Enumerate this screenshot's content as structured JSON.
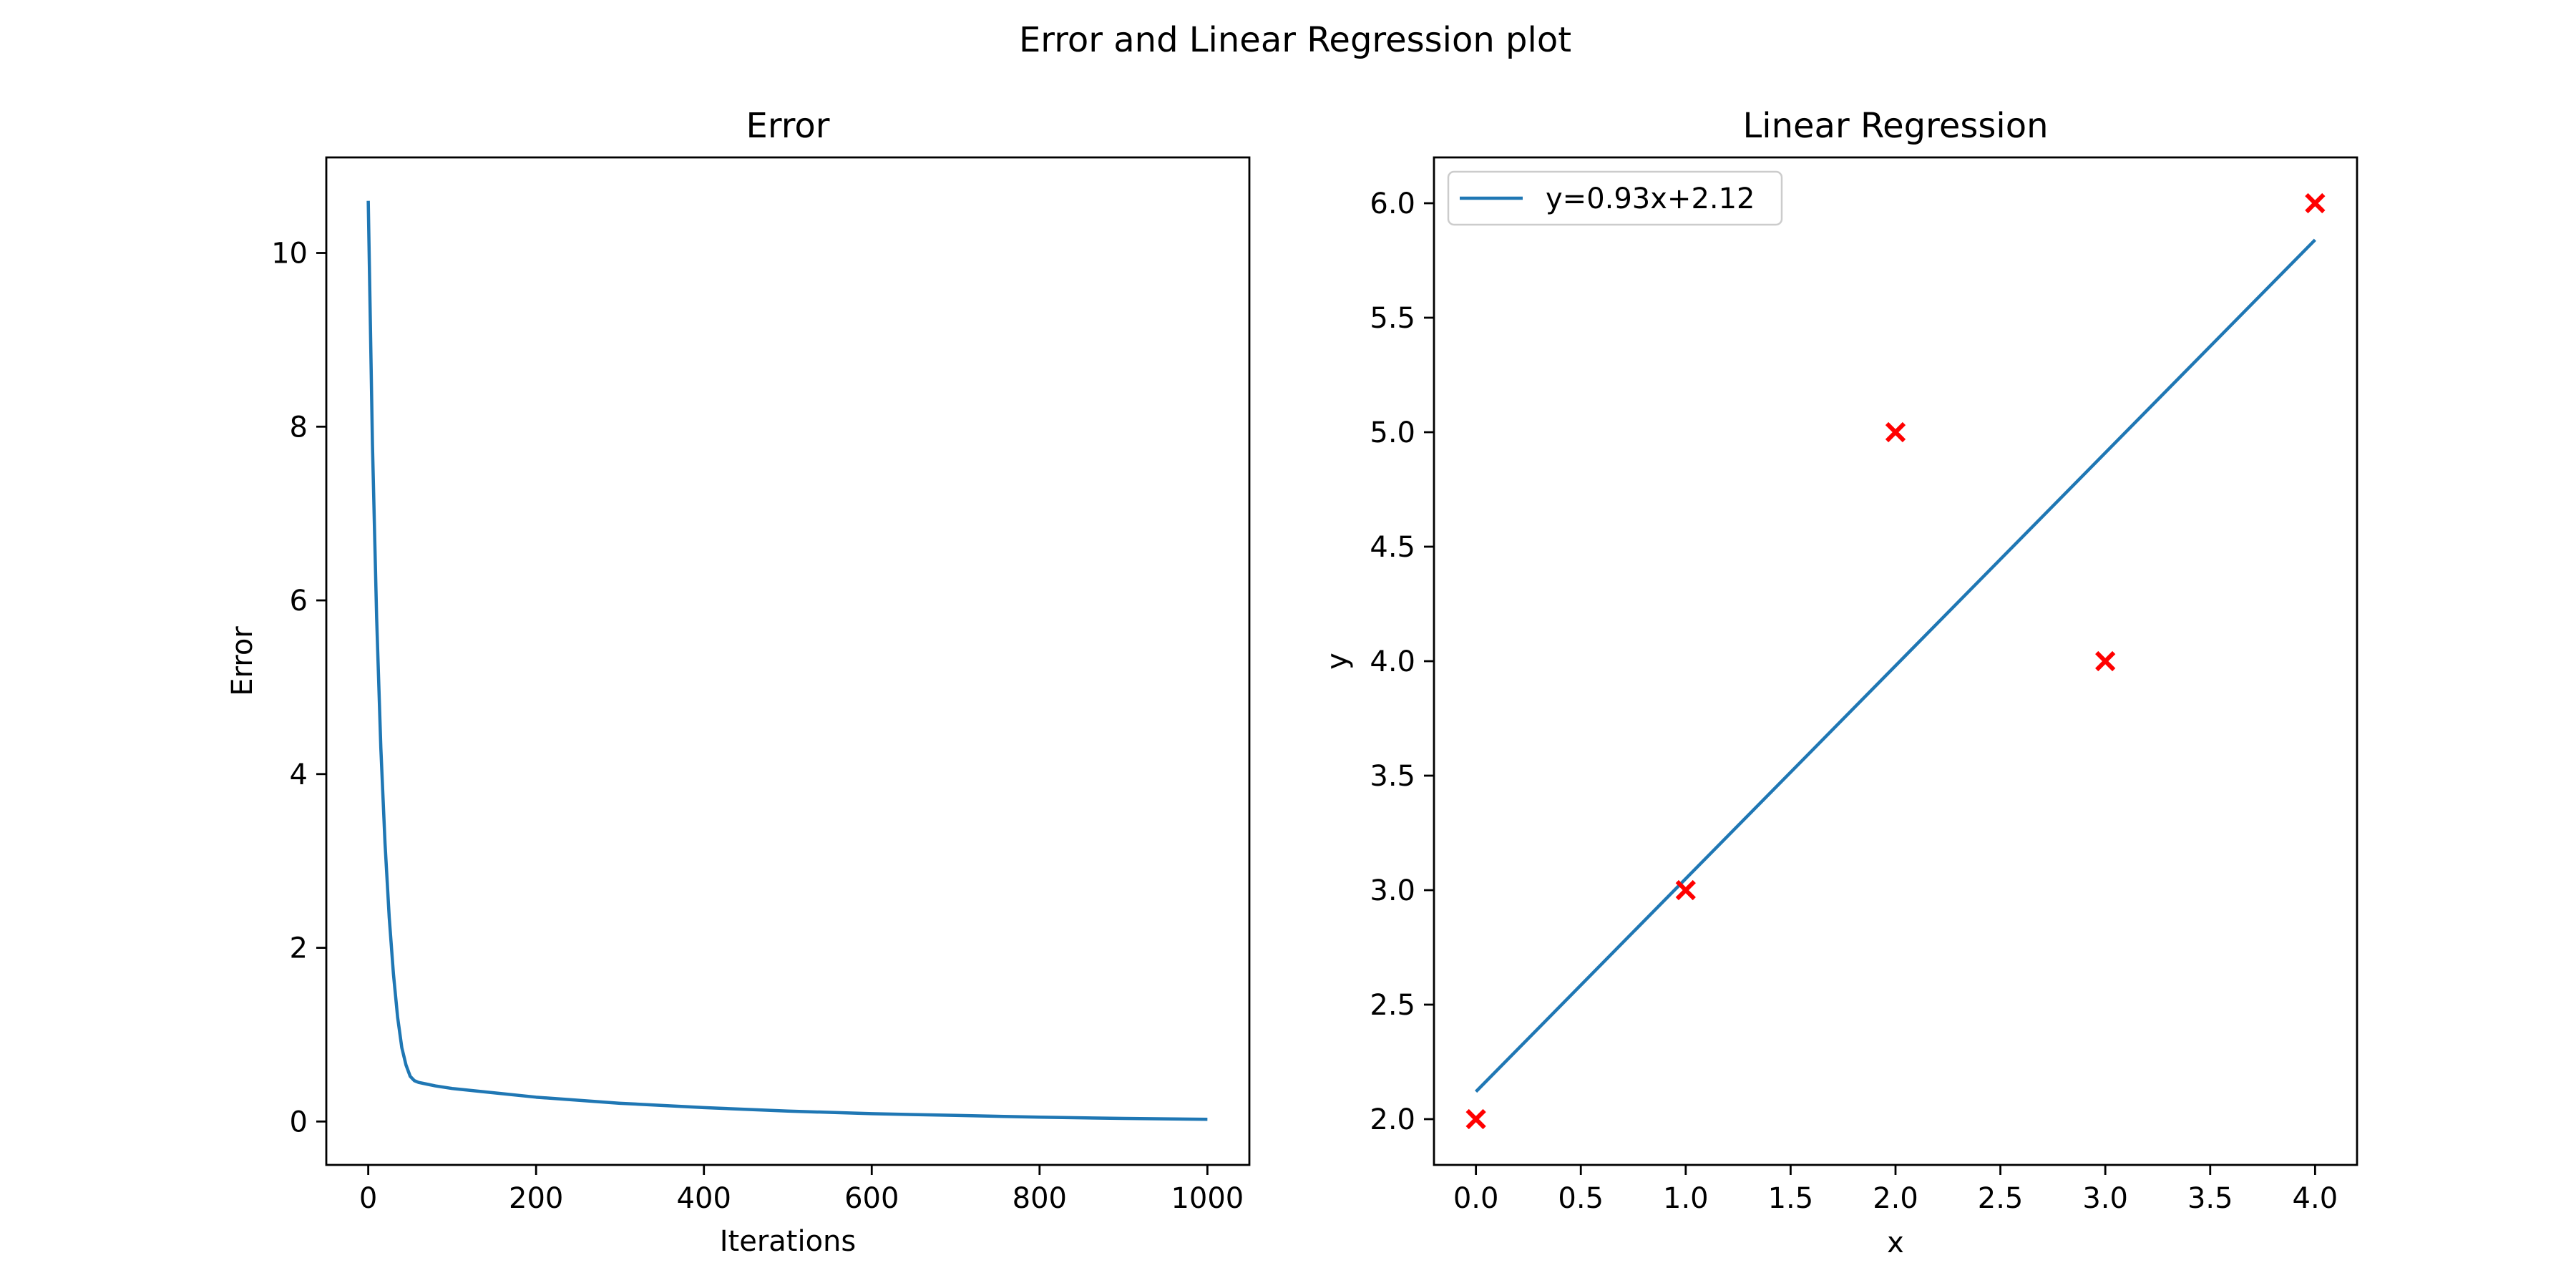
{
  "figure": {
    "suptitle": "Error and Linear Regression plot"
  },
  "chart_data": [
    {
      "type": "line",
      "title": "Error",
      "xlabel": "Iterations",
      "ylabel": "Error",
      "xlim": [
        -50,
        1050
      ],
      "ylim": [
        -0.5,
        11.1
      ],
      "xticks": [
        0,
        200,
        400,
        600,
        800,
        1000
      ],
      "xtick_labels": [
        "0",
        "200",
        "400",
        "600",
        "800",
        "1000"
      ],
      "yticks": [
        0,
        2,
        4,
        6,
        8,
        10
      ],
      "ytick_labels": [
        "0",
        "2",
        "4",
        "6",
        "8",
        "10"
      ],
      "grid": false,
      "line_color": "#1f77b4",
      "series": [
        {
          "x": [
            0,
            5,
            10,
            15,
            20,
            25,
            30,
            35,
            40,
            45,
            50,
            55,
            60,
            70,
            80,
            100,
            150,
            200,
            300,
            400,
            500,
            600,
            700,
            800,
            900,
            1000
          ],
          "y": [
            10.6,
            7.8,
            5.8,
            4.3,
            3.2,
            2.35,
            1.7,
            1.2,
            0.85,
            0.65,
            0.52,
            0.47,
            0.45,
            0.43,
            0.41,
            0.38,
            0.33,
            0.28,
            0.21,
            0.16,
            0.12,
            0.09,
            0.07,
            0.05,
            0.035,
            0.025
          ]
        }
      ]
    },
    {
      "type": "scatter",
      "title": "Linear Regression",
      "xlabel": "x",
      "ylabel": "y",
      "xlim": [
        -0.2,
        4.2
      ],
      "ylim": [
        1.8,
        6.2
      ],
      "xticks": [
        0.0,
        0.5,
        1.0,
        1.5,
        2.0,
        2.5,
        3.0,
        3.5,
        4.0
      ],
      "xtick_labels": [
        "0.0",
        "0.5",
        "1.0",
        "1.5",
        "2.0",
        "2.5",
        "3.0",
        "3.5",
        "4.0"
      ],
      "yticks": [
        2.0,
        2.5,
        3.0,
        3.5,
        4.0,
        4.5,
        5.0,
        5.5,
        6.0
      ],
      "ytick_labels": [
        "2.0",
        "2.5",
        "3.0",
        "3.5",
        "4.0",
        "4.5",
        "5.0",
        "5.5",
        "6.0"
      ],
      "grid": false,
      "legend_position": "top-left",
      "points": {
        "x": [
          0,
          1,
          2,
          3,
          4
        ],
        "y": [
          2,
          3,
          5,
          4,
          6
        ],
        "marker": "x",
        "color": "#ff0000"
      },
      "fit_line": {
        "name": "y=0.93x+2.12",
        "slope": 0.93,
        "intercept": 2.12,
        "x_range": [
          0,
          4
        ],
        "color": "#1f77b4"
      }
    }
  ]
}
